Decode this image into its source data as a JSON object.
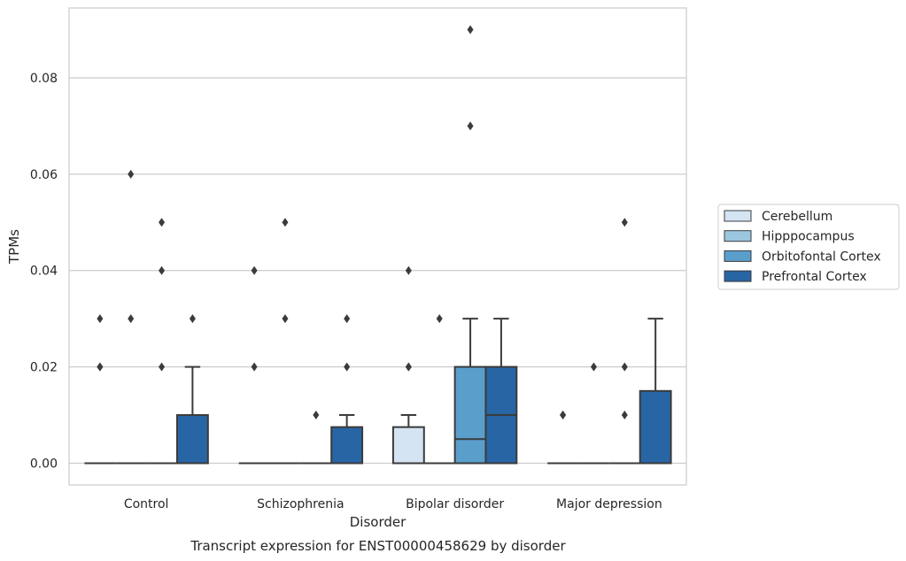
{
  "chart_data": {
    "type": "box",
    "caption": "Transcript expression for ENST00000458629 by disorder",
    "xlabel": "Disorder",
    "ylabel": "TPMs",
    "ylim": [
      -0.0045,
      0.0945
    ],
    "yticks": [
      0.0,
      0.02,
      0.04,
      0.06,
      0.08
    ],
    "ytick_labels": [
      "0.00",
      "0.02",
      "0.04",
      "0.06",
      "0.08"
    ],
    "grid": "horizontal",
    "legend_position": "right",
    "categories": [
      "Control",
      "Schizophrenia",
      "Bipolar disorder",
      "Major depression"
    ],
    "series": [
      {
        "name": "Cerebellum",
        "color": "#d4e4f3",
        "boxes": [
          {
            "q1": 0,
            "median": 0,
            "q3": 0,
            "whisker_low": 0,
            "whisker_high": 0,
            "outliers": [
              0.02,
              0.02,
              0.03
            ]
          },
          {
            "q1": 0,
            "median": 0,
            "q3": 0,
            "whisker_low": 0,
            "whisker_high": 0,
            "outliers": [
              0.02,
              0.04
            ]
          },
          {
            "q1": 0,
            "median": 0,
            "q3": 0.0075,
            "whisker_low": 0,
            "whisker_high": 0.01,
            "outliers": [
              0.02,
              0.02,
              0.04
            ]
          },
          {
            "q1": 0,
            "median": 0,
            "q3": 0,
            "whisker_low": 0,
            "whisker_high": 0,
            "outliers": [
              0.01,
              0.01
            ]
          }
        ]
      },
      {
        "name": "Hipppocampus",
        "color": "#9bc6e0",
        "boxes": [
          {
            "q1": 0,
            "median": 0,
            "q3": 0,
            "whisker_low": 0,
            "whisker_high": 0,
            "outliers": [
              0.03,
              0.06
            ]
          },
          {
            "q1": 0,
            "median": 0,
            "q3": 0,
            "whisker_low": 0,
            "whisker_high": 0,
            "outliers": [
              0.03,
              0.05
            ]
          },
          {
            "q1": 0,
            "median": 0,
            "q3": 0,
            "whisker_low": 0,
            "whisker_high": 0,
            "outliers": [
              0.03
            ]
          },
          {
            "q1": 0,
            "median": 0,
            "q3": 0,
            "whisker_low": 0,
            "whisker_high": 0,
            "outliers": [
              0.02
            ]
          }
        ]
      },
      {
        "name": "Orbitofontal Cortex",
        "color": "#5a9ecc",
        "boxes": [
          {
            "q1": 0,
            "median": 0,
            "q3": 0,
            "whisker_low": 0,
            "whisker_high": 0,
            "outliers": [
              0.02,
              0.04,
              0.05
            ]
          },
          {
            "q1": 0,
            "median": 0,
            "q3": 0,
            "whisker_low": 0,
            "whisker_high": 0,
            "outliers": [
              0.01
            ]
          },
          {
            "q1": 0,
            "median": 0.005,
            "q3": 0.02,
            "whisker_low": 0,
            "whisker_high": 0.03,
            "outliers": [
              0.07,
              0.09
            ]
          },
          {
            "q1": 0,
            "median": 0,
            "q3": 0,
            "whisker_low": 0,
            "whisker_high": 0,
            "outliers": [
              0.01,
              0.02,
              0.05
            ]
          }
        ]
      },
      {
        "name": "Prefrontal Cortex",
        "color": "#2865a5",
        "boxes": [
          {
            "q1": 0,
            "median": 0,
            "q3": 0.01,
            "whisker_low": 0,
            "whisker_high": 0.02,
            "outliers": [
              0.03
            ]
          },
          {
            "q1": 0,
            "median": 0,
            "q3": 0.0075,
            "whisker_low": 0,
            "whisker_high": 0.01,
            "outliers": [
              0.02,
              0.03
            ]
          },
          {
            "q1": 0,
            "median": 0.01,
            "q3": 0.02,
            "whisker_low": 0,
            "whisker_high": 0.03,
            "outliers": []
          },
          {
            "q1": 0,
            "median": 0,
            "q3": 0.015,
            "whisker_low": 0,
            "whisker_high": 0.03,
            "outliers": []
          }
        ]
      }
    ]
  }
}
